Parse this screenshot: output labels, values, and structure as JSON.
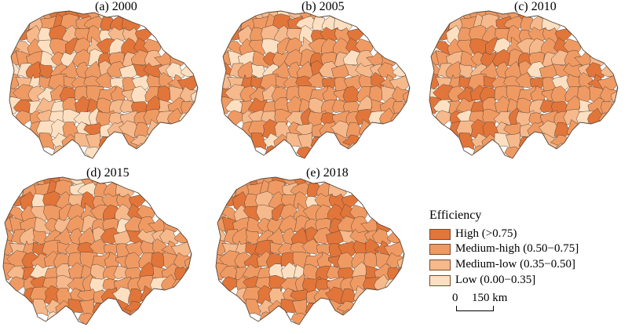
{
  "panels": [
    {
      "label": "(a) 2000"
    },
    {
      "label": "(b) 2005"
    },
    {
      "label": "(c) 2010"
    },
    {
      "label": "(d) 2015"
    },
    {
      "label": "(e) 2018"
    }
  ],
  "legend": {
    "title": "Efficiency",
    "classes": [
      {
        "label": "High (>0.75)",
        "color": "#e2753a"
      },
      {
        "label": "Medium-high (0.50−0.75]",
        "color": "#f09a63"
      },
      {
        "label": "Medium-low (0.35−0.50]",
        "color": "#f6b98c"
      },
      {
        "label": "Low (0.00−0.35]",
        "color": "#fde0c2"
      }
    ]
  },
  "scale_bar": {
    "start": "0",
    "end": "150 km"
  },
  "boundary_color": "#5a4636"
}
